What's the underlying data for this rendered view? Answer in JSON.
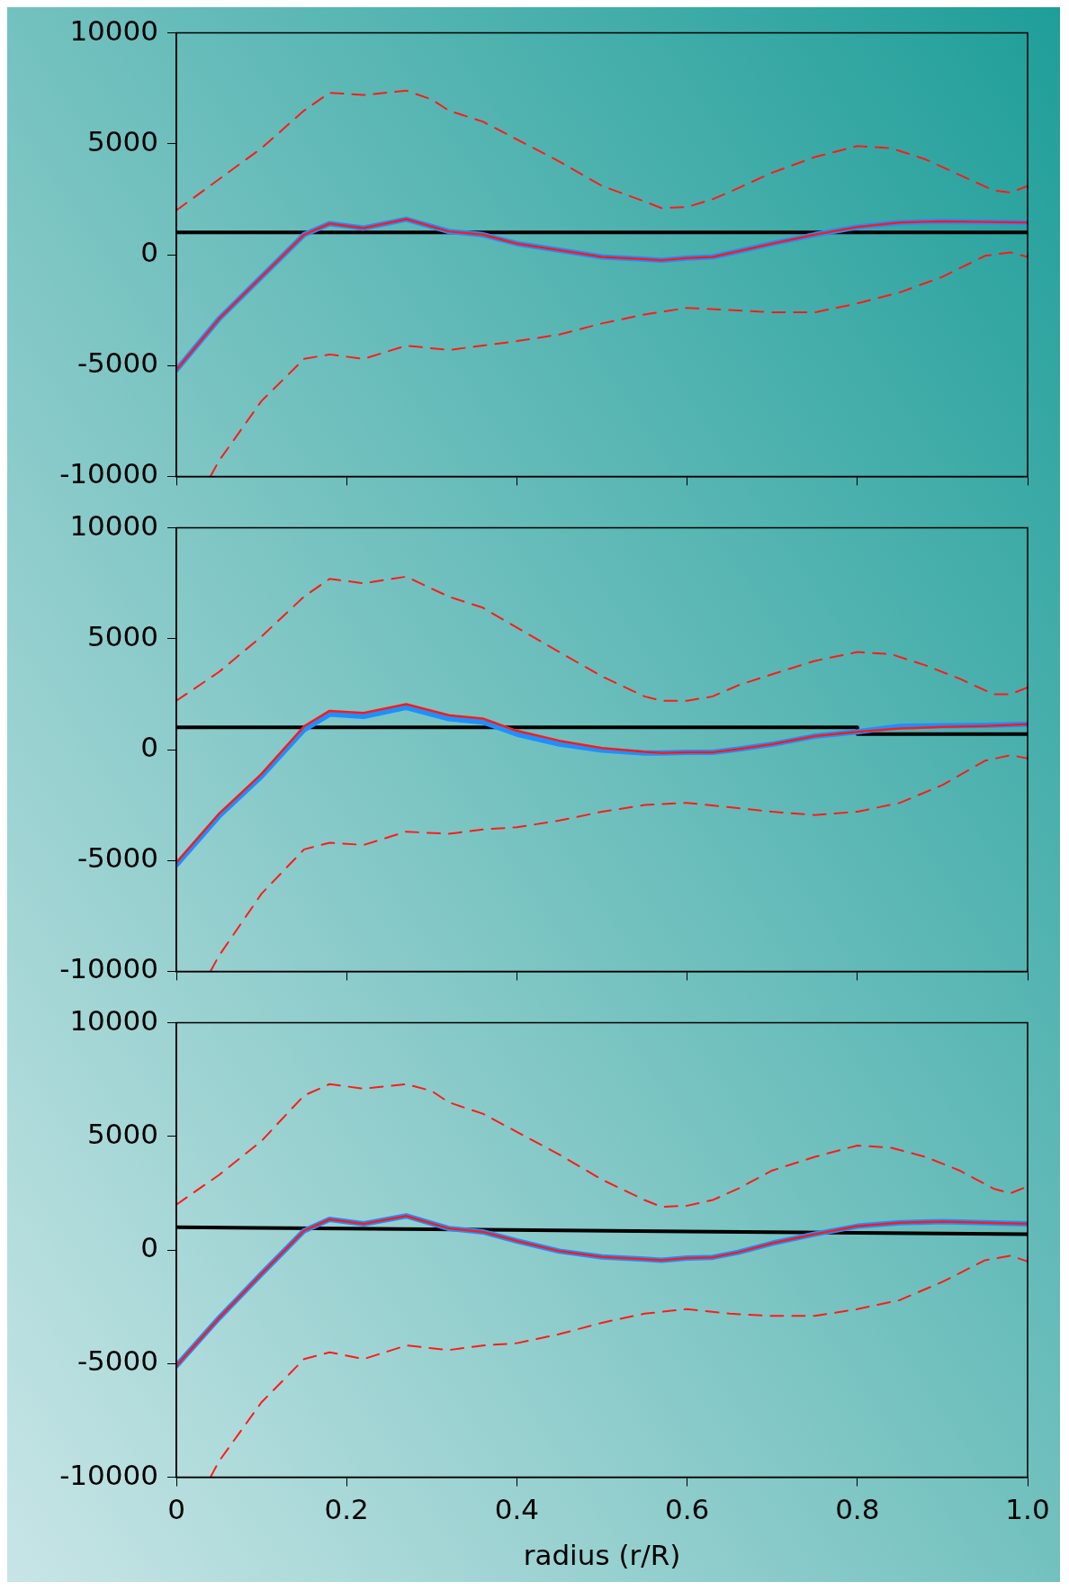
{
  "chart_data": [
    {
      "type": "line",
      "xlim": [
        0,
        1
      ],
      "xticks": [
        0,
        0.2,
        0.4,
        0.6,
        0.8,
        1
      ],
      "ylim": [
        -10000,
        10000
      ],
      "yticks": [
        -10000,
        -5000,
        0,
        5000,
        10000
      ],
      "tick_labels": "y",
      "legend": false,
      "grid": false,
      "series": [
        {
          "color": "#000000",
          "x": [
            0,
            1
          ],
          "values": [
            1000,
            1000
          ]
        },
        {
          "color": "#1e8fff",
          "x": [
            0,
            0.05,
            0.1,
            0.15,
            0.18,
            0.22,
            0.27,
            0.32,
            0.36,
            0.4,
            0.45,
            0.5,
            0.55,
            0.57,
            0.6,
            0.63,
            0.66,
            0.7,
            0.75,
            0.8,
            0.85,
            0.9,
            1.0
          ],
          "values": [
            -5200,
            -2900,
            -1000,
            900,
            1400,
            1200,
            1600,
            1050,
            900,
            500,
            200,
            -100,
            -200,
            -250,
            -150,
            -100,
            150,
            500,
            900,
            1250,
            1450,
            1500,
            1450
          ]
        },
        {
          "color": "#ff1a1a",
          "x": [
            0,
            0.05,
            0.1,
            0.15,
            0.18,
            0.22,
            0.27,
            0.32,
            0.36,
            0.4,
            0.45,
            0.5,
            0.55,
            0.57,
            0.6,
            0.63,
            0.66,
            0.7,
            0.75,
            0.8,
            0.85,
            0.9,
            1.0
          ],
          "values": [
            -5200,
            -2900,
            -1000,
            900,
            1400,
            1200,
            1600,
            1050,
            900,
            500,
            200,
            -100,
            -200,
            -250,
            -150,
            -100,
            150,
            500,
            900,
            1250,
            1450,
            1500,
            1450
          ]
        },
        {
          "color": "#ff1a1a",
          "line_style": "dashed",
          "x": [
            0,
            0.05,
            0.1,
            0.15,
            0.18,
            0.22,
            0.27,
            0.3,
            0.32,
            0.36,
            0.4,
            0.45,
            0.5,
            0.55,
            0.57,
            0.6,
            0.63,
            0.66,
            0.7,
            0.75,
            0.8,
            0.84,
            0.88,
            0.92,
            0.96,
            0.98,
            1.0
          ],
          "values": [
            2000,
            3400,
            4800,
            6500,
            7300,
            7200,
            7400,
            7000,
            6500,
            6000,
            5200,
            4200,
            3100,
            2400,
            2100,
            2150,
            2500,
            3000,
            3700,
            4400,
            4900,
            4800,
            4300,
            3600,
            2900,
            2800,
            3100
          ]
        },
        {
          "color": "#ff1a1a",
          "line_style": "dashed",
          "x": [
            0.04,
            0.05,
            0.1,
            0.15,
            0.18,
            0.22,
            0.27,
            0.32,
            0.36,
            0.4,
            0.45,
            0.5,
            0.55,
            0.6,
            0.65,
            0.7,
            0.75,
            0.8,
            0.85,
            0.9,
            0.95,
            0.98,
            1.0
          ],
          "values": [
            -10000,
            -9300,
            -6600,
            -4700,
            -4500,
            -4700,
            -4100,
            -4300,
            -4100,
            -3900,
            -3600,
            -3100,
            -2700,
            -2400,
            -2500,
            -2600,
            -2600,
            -2200,
            -1700,
            -1000,
            -50,
            100,
            -100
          ]
        }
      ]
    },
    {
      "type": "line",
      "xlim": [
        0,
        1
      ],
      "xticks": [
        0,
        0.2,
        0.4,
        0.6,
        0.8,
        1
      ],
      "ylim": [
        -10000,
        10000
      ],
      "yticks": [
        -10000,
        -5000,
        0,
        5000,
        10000
      ],
      "tick_labels": "y",
      "legend": false,
      "grid": false,
      "series": [
        {
          "color": "#000000",
          "x": [
            0,
            0.8,
            0.8,
            1
          ],
          "values": [
            1000,
            1000,
            700,
            700
          ]
        },
        {
          "color": "#1e8fff",
          "x": [
            0,
            0.05,
            0.1,
            0.15,
            0.18,
            0.22,
            0.27,
            0.32,
            0.36,
            0.4,
            0.45,
            0.5,
            0.55,
            0.57,
            0.6,
            0.63,
            0.66,
            0.7,
            0.75,
            0.8,
            0.85,
            0.9,
            0.95,
            1.0
          ],
          "values": [
            -5200,
            -3000,
            -1200,
            900,
            1600,
            1500,
            1900,
            1400,
            1250,
            700,
            250,
            -20,
            -150,
            -150,
            -120,
            -120,
            20,
            240,
            610,
            800,
            1050,
            1080,
            1100,
            1150
          ]
        },
        {
          "color": "#ff1a1a",
          "x": [
            0,
            0.05,
            0.1,
            0.15,
            0.18,
            0.22,
            0.27,
            0.32,
            0.36,
            0.4,
            0.45,
            0.5,
            0.55,
            0.57,
            0.6,
            0.63,
            0.66,
            0.7,
            0.75,
            0.8,
            0.85,
            0.9,
            0.95,
            1.0
          ],
          "values": [
            -5100,
            -2900,
            -1100,
            1050,
            1750,
            1650,
            2050,
            1550,
            1400,
            850,
            400,
            70,
            -100,
            -150,
            -120,
            -120,
            20,
            240,
            610,
            800,
            950,
            1020,
            1070,
            1150
          ]
        },
        {
          "color": "#ff1a1a",
          "line_style": "dashed",
          "x": [
            0,
            0.05,
            0.1,
            0.15,
            0.18,
            0.22,
            0.27,
            0.32,
            0.36,
            0.4,
            0.45,
            0.5,
            0.55,
            0.57,
            0.6,
            0.63,
            0.66,
            0.7,
            0.75,
            0.8,
            0.84,
            0.88,
            0.92,
            0.96,
            0.98,
            1.0
          ],
          "values": [
            2200,
            3500,
            5100,
            6900,
            7700,
            7500,
            7800,
            6900,
            6400,
            5500,
            4400,
            3300,
            2400,
            2200,
            2200,
            2400,
            2900,
            3400,
            4000,
            4400,
            4300,
            3800,
            3200,
            2500,
            2500,
            2800
          ]
        },
        {
          "color": "#ff1a1a",
          "line_style": "dashed",
          "x": [
            0.04,
            0.05,
            0.1,
            0.15,
            0.18,
            0.22,
            0.27,
            0.32,
            0.36,
            0.4,
            0.45,
            0.5,
            0.55,
            0.6,
            0.65,
            0.7,
            0.75,
            0.8,
            0.85,
            0.9,
            0.95,
            0.98,
            1.0
          ],
          "values": [
            -10000,
            -9300,
            -6500,
            -4500,
            -4200,
            -4300,
            -3700,
            -3800,
            -3600,
            -3500,
            -3200,
            -2800,
            -2500,
            -2400,
            -2600,
            -2800,
            -2950,
            -2800,
            -2400,
            -1600,
            -500,
            -250,
            -400
          ]
        }
      ]
    },
    {
      "type": "line",
      "xlim": [
        0,
        1
      ],
      "xticks": [
        0,
        0.2,
        0.4,
        0.6,
        0.8,
        {
          "value": 1,
          "label": "1.0"
        }
      ],
      "ylim": [
        -10000,
        10000
      ],
      "yticks": [
        -10000,
        -5000,
        0,
        5000,
        10000
      ],
      "xlabel": "radius (r/R)",
      "legend": false,
      "grid": false,
      "series": [
        {
          "color": "#000000",
          "x": [
            0,
            1
          ],
          "values": [
            1000,
            700
          ]
        },
        {
          "color": "#1e8fff",
          "x": [
            0,
            0.05,
            0.1,
            0.15,
            0.18,
            0.22,
            0.27,
            0.32,
            0.36,
            0.4,
            0.45,
            0.5,
            0.55,
            0.57,
            0.6,
            0.63,
            0.66,
            0.7,
            0.75,
            0.8,
            0.85,
            0.9,
            0.95,
            1.0
          ],
          "values": [
            -5100,
            -3000,
            -1050,
            850,
            1350,
            1150,
            1500,
            950,
            800,
            400,
            -50,
            -300,
            -400,
            -450,
            -350,
            -320,
            -100,
            300,
            700,
            1050,
            1200,
            1250,
            1200,
            1150
          ]
        },
        {
          "color": "#ff1a1a",
          "x": [
            0,
            0.05,
            0.1,
            0.15,
            0.18,
            0.22,
            0.27,
            0.32,
            0.36,
            0.4,
            0.45,
            0.5,
            0.55,
            0.57,
            0.6,
            0.63,
            0.66,
            0.7,
            0.75,
            0.8,
            0.85,
            0.9,
            0.95,
            1.0
          ],
          "values": [
            -5100,
            -3000,
            -1050,
            850,
            1350,
            1150,
            1500,
            950,
            800,
            400,
            -50,
            -300,
            -400,
            -450,
            -350,
            -320,
            -100,
            300,
            700,
            1050,
            1200,
            1250,
            1200,
            1150
          ]
        },
        {
          "color": "#ff1a1a",
          "line_style": "dashed",
          "x": [
            0,
            0.05,
            0.1,
            0.15,
            0.18,
            0.22,
            0.27,
            0.3,
            0.32,
            0.36,
            0.4,
            0.45,
            0.5,
            0.55,
            0.57,
            0.6,
            0.63,
            0.66,
            0.7,
            0.75,
            0.8,
            0.84,
            0.88,
            0.92,
            0.96,
            0.98,
            1.0
          ],
          "values": [
            2000,
            3300,
            4800,
            6800,
            7300,
            7100,
            7300,
            7000,
            6500,
            6000,
            5200,
            4200,
            3100,
            2200,
            1900,
            1950,
            2200,
            2700,
            3500,
            4100,
            4600,
            4500,
            4100,
            3500,
            2700,
            2500,
            2800
          ]
        },
        {
          "color": "#ff1a1a",
          "line_style": "dashed",
          "x": [
            0.04,
            0.05,
            0.1,
            0.15,
            0.18,
            0.22,
            0.27,
            0.32,
            0.36,
            0.4,
            0.45,
            0.5,
            0.55,
            0.6,
            0.65,
            0.7,
            0.75,
            0.8,
            0.85,
            0.9,
            0.95,
            0.98,
            1.0
          ],
          "values": [
            -10000,
            -9300,
            -6700,
            -4800,
            -4500,
            -4800,
            -4200,
            -4400,
            -4200,
            -4100,
            -3700,
            -3200,
            -2800,
            -2600,
            -2800,
            -2900,
            -2900,
            -2600,
            -2200,
            -1400,
            -450,
            -250,
            -500
          ]
        }
      ]
    }
  ]
}
